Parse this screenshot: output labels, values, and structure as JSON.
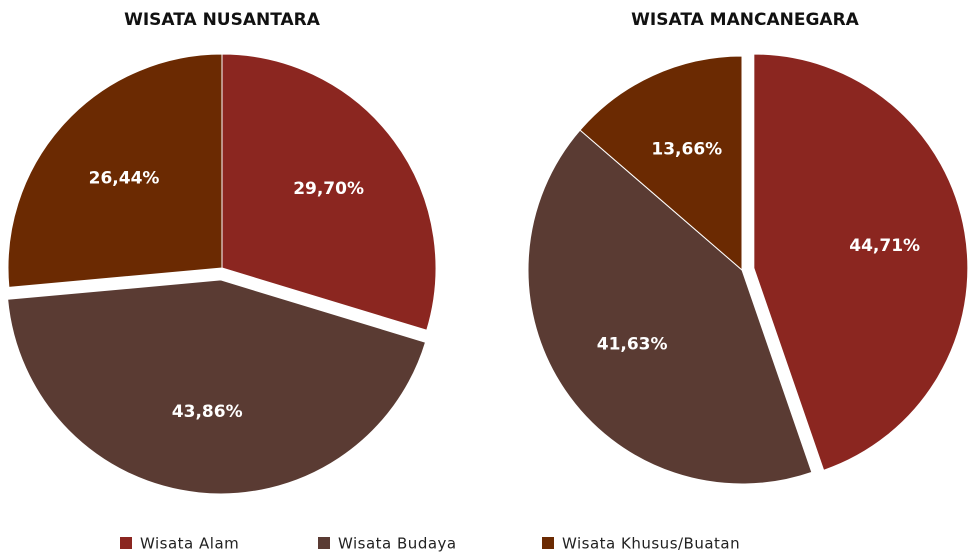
{
  "chart_data": [
    {
      "type": "pie",
      "title": "WISATA NUSANTARA",
      "values": [
        29.7,
        43.86,
        26.44
      ],
      "value_labels": [
        "29,70%",
        "43,86%",
        "26,44%"
      ],
      "explode": [
        false,
        true,
        false
      ]
    },
    {
      "type": "pie",
      "title": "WISATA MANCANEGARA",
      "values": [
        44.71,
        41.63,
        13.66
      ],
      "value_labels": [
        "44,71%",
        "41,63%",
        "13,66%"
      ],
      "explode": [
        true,
        false,
        false
      ]
    }
  ],
  "legend": {
    "labels": [
      "Wisata Alam",
      "Wisata Budaya",
      "Wisata Khusus/Buatan"
    ],
    "colors": [
      "#8b2620",
      "#5a3b33",
      "#6b2a02"
    ]
  }
}
